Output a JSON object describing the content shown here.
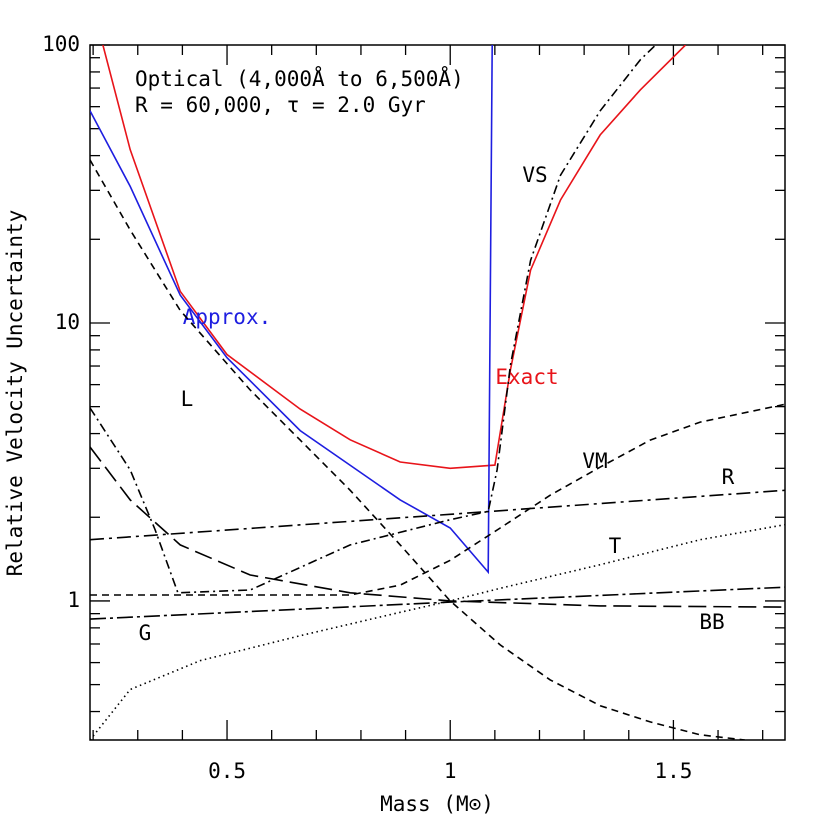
{
  "chart_data": {
    "type": "line",
    "annotations": [
      "Optical (4,000Å to 6,500Å)",
      "R = 60,000, τ = 2.0 Gyr"
    ],
    "xlabel": "Mass (M⊙)",
    "ylabel": "Relative Velocity Uncertainty",
    "xlim": [
      0.193,
      1.75
    ],
    "ylim": [
      0.316,
      100
    ],
    "ylog": true,
    "xticks": [
      0.5,
      1,
      1.5
    ],
    "yticks": [
      1,
      10,
      100
    ],
    "xminorticks": [
      0.2,
      0.3,
      0.4,
      0.6,
      0.7,
      0.8,
      0.9,
      1.1,
      1.2,
      1.3,
      1.4,
      1.6,
      1.7
    ],
    "yminorticks": [
      0.4,
      0.5,
      0.6,
      0.7,
      0.8,
      0.9,
      2,
      3,
      4,
      5,
      6,
      7,
      8,
      9,
      20,
      30,
      40,
      50,
      60,
      70,
      80,
      90
    ],
    "series": [
      {
        "name": "Exact",
        "color": "#e8141a",
        "dash": "none",
        "x": [
          0.222,
          0.283,
          0.395,
          0.5,
          0.664,
          0.776,
          0.888,
          1.0,
          1.1,
          1.135,
          1.18,
          1.247,
          1.336,
          1.426,
          1.527
        ],
        "values": [
          100,
          42,
          13,
          7.7,
          4.9,
          3.8,
          3.16,
          3.0,
          3.08,
          6.8,
          15.5,
          27.7,
          47.5,
          69,
          100
        ]
      },
      {
        "name": "Approx.",
        "color": "#1e1ee0",
        "dash": "none",
        "x": [
          0.193,
          0.283,
          0.395,
          0.5,
          0.664,
          0.888,
          1.0,
          1.085,
          1.094
        ],
        "values": [
          58,
          31,
          12.6,
          7.5,
          4.1,
          2.31,
          1.83,
          1.27,
          100
        ]
      },
      {
        "name": "L",
        "color": "#000000",
        "dash": "7,5",
        "x": [
          0.193,
          0.283,
          0.395,
          0.552,
          0.664,
          0.776,
          0.888,
          1.0,
          1.112,
          1.224,
          1.336,
          1.448,
          1.56,
          1.66
        ],
        "values": [
          38.6,
          21.6,
          11.1,
          5.74,
          3.79,
          2.5,
          1.59,
          1.0,
          0.695,
          0.52,
          0.42,
          0.367,
          0.33,
          0.316
        ]
      },
      {
        "name": "VS",
        "color": "#000000",
        "dash": "9,4,2,4",
        "x": [
          0.193,
          0.283,
          0.339,
          0.39,
          0.552,
          0.776,
          1.0,
          1.085,
          1.105,
          1.135,
          1.18,
          1.247,
          1.336,
          1.426,
          1.46
        ],
        "values": [
          4.95,
          2.96,
          1.8,
          1.07,
          1.095,
          1.59,
          1.96,
          2.1,
          2.96,
          7.07,
          16.8,
          34,
          58,
          88.5,
          100
        ]
      },
      {
        "name": "VM",
        "color": "#000000",
        "dash": "7,5",
        "x": [
          0.193,
          0.776,
          0.888,
          1.0,
          1.112,
          1.224,
          1.336,
          1.448,
          1.56,
          1.75
        ],
        "values": [
          1.05,
          1.05,
          1.14,
          1.4,
          1.83,
          2.4,
          3.03,
          3.79,
          4.4,
          5.1
        ]
      },
      {
        "name": "R",
        "color": "#000000",
        "dash": "14,5,3,5",
        "x": [
          0.193,
          1.0,
          1.75
        ],
        "values": [
          1.66,
          2.05,
          2.5
        ]
      },
      {
        "name": "T",
        "color": "#000000",
        "dash": "1.5,3.5",
        "x": [
          0.193,
          0.283,
          0.44,
          0.664,
          0.888,
          1.0,
          1.112,
          1.336,
          1.56,
          1.75
        ],
        "values": [
          0.316,
          0.48,
          0.61,
          0.75,
          0.91,
          1.0,
          1.11,
          1.35,
          1.66,
          1.88
        ]
      },
      {
        "name": "G",
        "color": "#000000",
        "dash": "16,4,3,4",
        "x": [
          0.193,
          1.0,
          1.75
        ],
        "values": [
          0.86,
          0.99,
          1.12
        ]
      },
      {
        "name": "BB",
        "color": "#000000",
        "dash": "18,7",
        "x": [
          0.193,
          0.283,
          0.395,
          0.552,
          0.776,
          1.0,
          1.336,
          1.75
        ],
        "values": [
          3.58,
          2.31,
          1.59,
          1.24,
          1.07,
          1.0,
          0.96,
          0.95
        ]
      }
    ]
  }
}
